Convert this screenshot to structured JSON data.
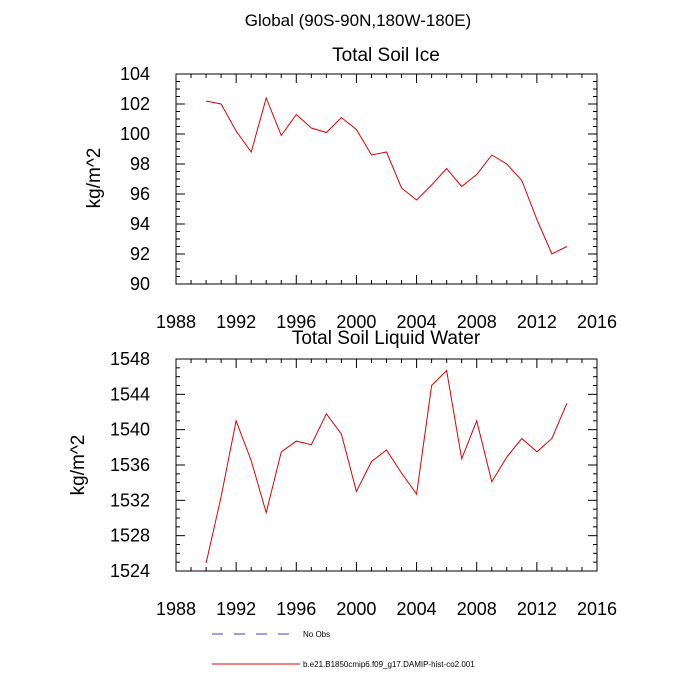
{
  "header": {
    "title": "Global (90S-90N,180W-180E)"
  },
  "legend": [
    {
      "label": "No Obs",
      "color": "#3f3fbf",
      "style": "dashed"
    },
    {
      "label": "b.e21.B1850cmip6.f09_g17.DAMIP-hist-co2.001",
      "color": "#e00000",
      "style": "solid"
    }
  ],
  "chart_data": [
    {
      "type": "line",
      "title": "Total Soil Ice",
      "ylabel": "kg/m^2",
      "xlim": [
        1988,
        2016
      ],
      "ylim": [
        90,
        104
      ],
      "xticks": [
        1988,
        1992,
        1996,
        2000,
        2004,
        2008,
        2012,
        2016
      ],
      "yticks": [
        90,
        92,
        94,
        96,
        98,
        100,
        102,
        104
      ],
      "series": [
        {
          "color": "#e00000",
          "x": [
            1990,
            1991,
            1992,
            1993,
            1994,
            1995,
            1996,
            1997,
            1998,
            1999,
            2000,
            2001,
            2002,
            2003,
            2004,
            2005,
            2006,
            2007,
            2008,
            2009,
            2010,
            2011,
            2012,
            2013,
            2014
          ],
          "y": [
            102.2,
            102.0,
            100.2,
            98.8,
            102.4,
            99.9,
            101.3,
            100.4,
            100.1,
            101.1,
            100.3,
            98.6,
            98.8,
            96.4,
            95.6,
            96.6,
            97.7,
            96.5,
            97.3,
            98.6,
            98.0,
            96.9,
            94.3,
            92.0,
            92.5
          ]
        }
      ]
    },
    {
      "type": "line",
      "title": "Total Soil Liquid Water",
      "ylabel": "kg/m^2",
      "xlim": [
        1988,
        2016
      ],
      "ylim": [
        1524,
        1548
      ],
      "xticks": [
        1988,
        1992,
        1996,
        2000,
        2004,
        2008,
        2012,
        2016
      ],
      "yticks": [
        1524,
        1528,
        1532,
        1536,
        1540,
        1544,
        1548
      ],
      "series": [
        {
          "color": "#e00000",
          "x": [
            1990,
            1991,
            1992,
            1993,
            1994,
            1995,
            1996,
            1997,
            1998,
            1999,
            2000,
            2001,
            2002,
            2003,
            2004,
            2005,
            2006,
            2007,
            2008,
            2009,
            2010,
            2011,
            2012,
            2013,
            2014
          ],
          "y": [
            1524.9,
            1532.4,
            1541.0,
            1536.5,
            1530.6,
            1537.5,
            1538.7,
            1538.3,
            1541.8,
            1539.5,
            1533.0,
            1536.4,
            1537.7,
            1535.1,
            1532.7,
            1545.0,
            1546.7,
            1536.7,
            1541.0,
            1534.1,
            1536.9,
            1539.0,
            1537.5,
            1539.0,
            1543.0
          ]
        }
      ]
    }
  ]
}
